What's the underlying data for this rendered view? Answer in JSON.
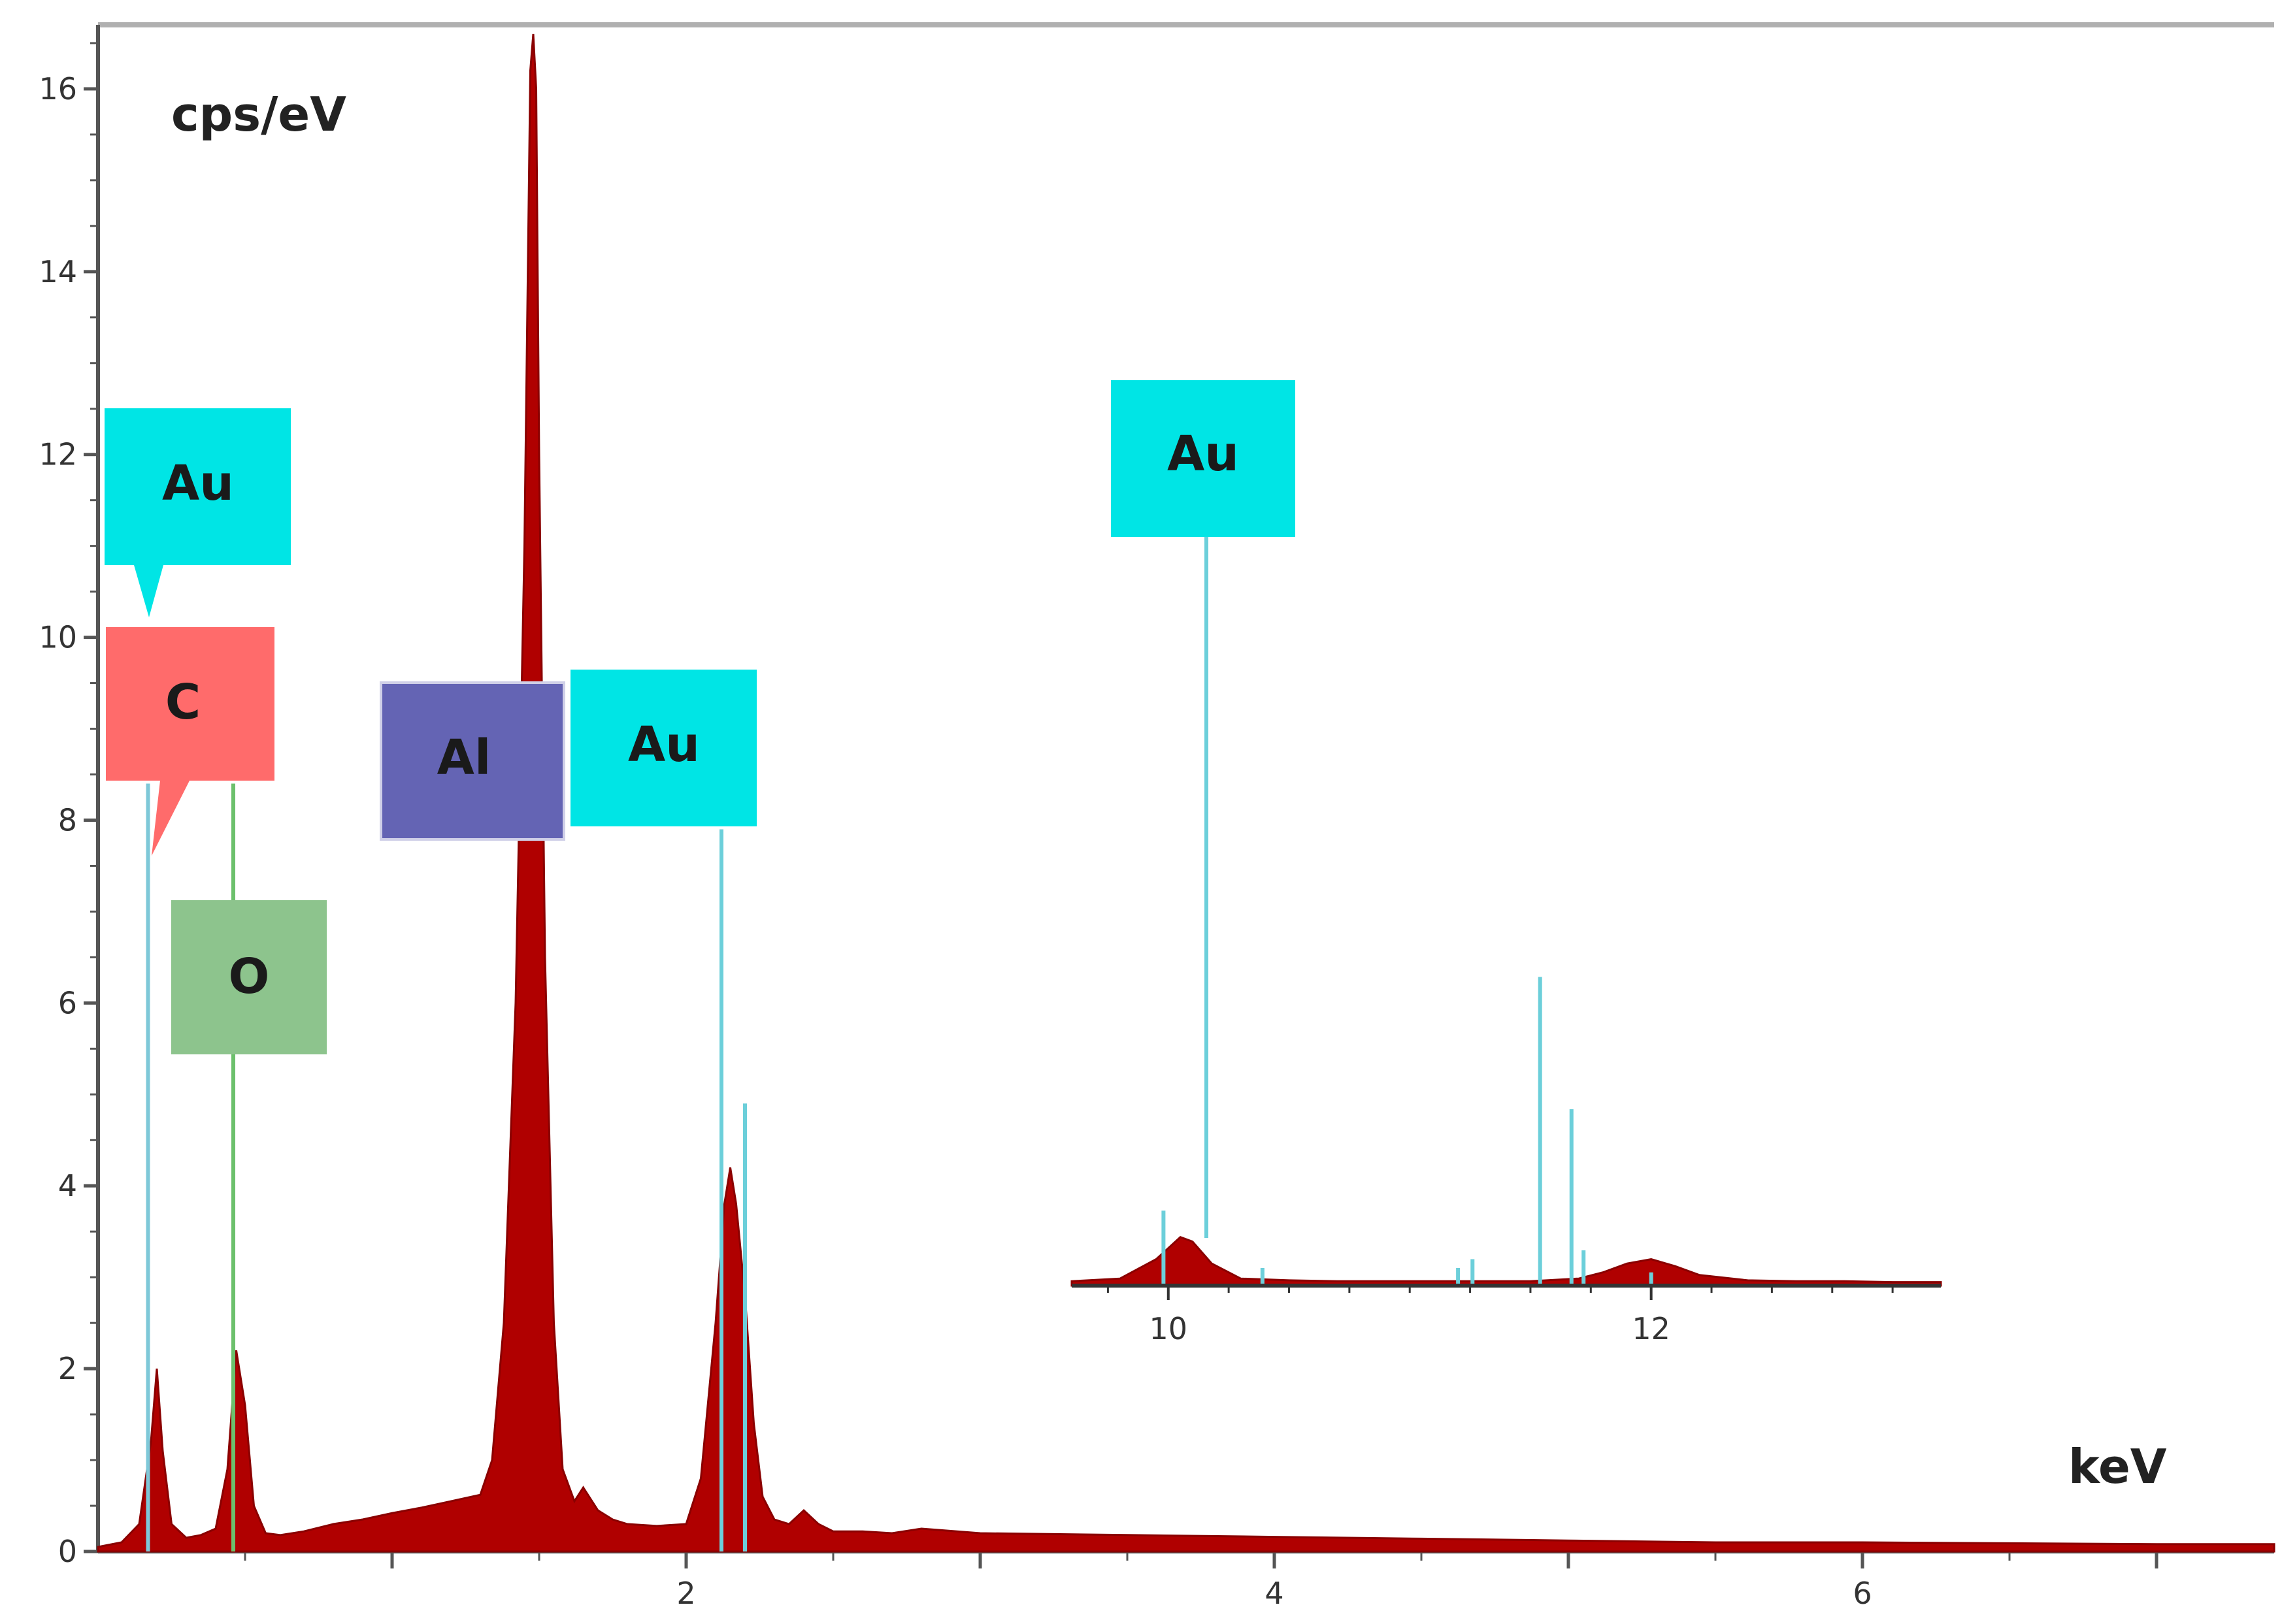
{
  "chart_data": {
    "type": "line",
    "title": "",
    "ylabel": "cps/eV",
    "xlabel": "keV",
    "xlim": [
      0,
      7.4
    ],
    "ylim": [
      0,
      16.7
    ],
    "x_ticks": [
      "2",
      "4",
      "6"
    ],
    "x_tick_values": [
      2,
      4,
      6
    ],
    "y_ticks": [
      "0",
      "2",
      "4",
      "6",
      "8",
      "10",
      "12",
      "14",
      "16"
    ],
    "y_tick_values": [
      0,
      2,
      4,
      6,
      8,
      10,
      12,
      14,
      16
    ],
    "grid": false,
    "spectrum": {
      "color": "#b00000",
      "x": [
        0,
        0.08,
        0.14,
        0.18,
        0.2,
        0.22,
        0.25,
        0.3,
        0.35,
        0.4,
        0.44,
        0.47,
        0.5,
        0.53,
        0.57,
        0.62,
        0.7,
        0.8,
        0.9,
        1.0,
        1.1,
        1.2,
        1.3,
        1.34,
        1.38,
        1.42,
        1.45,
        1.47,
        1.48,
        1.49,
        1.5,
        1.52,
        1.55,
        1.58,
        1.62,
        1.65,
        1.7,
        1.75,
        1.8,
        1.9,
        2.0,
        2.05,
        2.1,
        2.13,
        2.15,
        2.17,
        2.2,
        2.23,
        2.26,
        2.3,
        2.35,
        2.4,
        2.45,
        2.5,
        2.6,
        2.7,
        2.8,
        3.0,
        3.5,
        4.0,
        4.5,
        5.0,
        5.5,
        6.0,
        6.5,
        7.0,
        7.4
      ],
      "y": [
        0.05,
        0.1,
        0.3,
        1.2,
        2.0,
        1.1,
        0.3,
        0.15,
        0.18,
        0.25,
        0.9,
        2.2,
        1.6,
        0.5,
        0.2,
        0.18,
        0.22,
        0.3,
        0.35,
        0.42,
        0.48,
        0.55,
        0.62,
        1.0,
        2.5,
        6.0,
        11.0,
        16.2,
        16.6,
        16.0,
        12.0,
        6.5,
        2.5,
        0.9,
        0.55,
        0.7,
        0.45,
        0.35,
        0.3,
        0.28,
        0.3,
        0.8,
        2.5,
        3.8,
        4.2,
        3.8,
        2.8,
        1.4,
        0.6,
        0.35,
        0.3,
        0.45,
        0.3,
        0.22,
        0.22,
        0.2,
        0.25,
        0.2,
        0.18,
        0.16,
        0.14,
        0.12,
        0.1,
        0.1,
        0.09,
        0.08,
        0.08
      ]
    },
    "element_lines": [
      {
        "element": "C",
        "x": 0.17,
        "height": 8.4,
        "color": "#7ec8d8"
      },
      {
        "element": "O",
        "x": 0.46,
        "height": 8.4,
        "color": "#6cc06c"
      },
      {
        "element": "Au",
        "x": 2.12,
        "height": 7.9,
        "color": "#6ccfda"
      },
      {
        "element": "Au",
        "x": 2.2,
        "height": 4.9,
        "color": "#6ccfda"
      }
    ],
    "labels": [
      {
        "text": "Au",
        "color": "#00e5e5"
      },
      {
        "text": "C",
        "color": "#ff6b6b"
      },
      {
        "text": "O",
        "color": "#8dc48d"
      },
      {
        "text": "Al",
        "color": "#6464b4"
      },
      {
        "text": "Au",
        "color": "#00e5e5"
      },
      {
        "text": "Au",
        "color": "#00e5e5"
      }
    ],
    "inset": {
      "xlim": [
        9.6,
        13.2
      ],
      "x_ticks": [
        "10",
        "12"
      ],
      "x_tick_values": [
        10,
        12
      ],
      "ymax": 4.0,
      "spectrum": {
        "x": [
          9.6,
          9.8,
          9.95,
          10.05,
          10.1,
          10.18,
          10.3,
          10.5,
          10.7,
          10.9,
          11.1,
          11.3,
          11.5,
          11.7,
          11.8,
          11.9,
          12.0,
          12.1,
          12.2,
          12.4,
          12.6,
          12.8,
          13.0,
          13.2
        ],
        "y": [
          0.05,
          0.08,
          0.3,
          0.55,
          0.5,
          0.25,
          0.08,
          0.06,
          0.05,
          0.05,
          0.05,
          0.05,
          0.05,
          0.08,
          0.15,
          0.25,
          0.3,
          0.22,
          0.12,
          0.06,
          0.05,
          0.05,
          0.04,
          0.04
        ]
      },
      "element_lines": [
        {
          "element": "Au",
          "x": 9.98,
          "height": 0.85
        },
        {
          "element": "Au",
          "x": 10.07,
          "height": 5.4
        },
        {
          "element": "Au",
          "x": 10.39,
          "height": 0.2
        },
        {
          "element": "Au",
          "x": 11.2,
          "height": 0.2
        },
        {
          "element": "Au",
          "x": 11.26,
          "height": 0.3
        },
        {
          "element": "Au",
          "x": 11.54,
          "height": 3.5
        },
        {
          "element": "Au",
          "x": 11.67,
          "height": 2.0
        },
        {
          "element": "Au",
          "x": 11.72,
          "height": 0.4
        },
        {
          "element": "Au",
          "x": 12.0,
          "height": 0.15
        }
      ]
    }
  }
}
